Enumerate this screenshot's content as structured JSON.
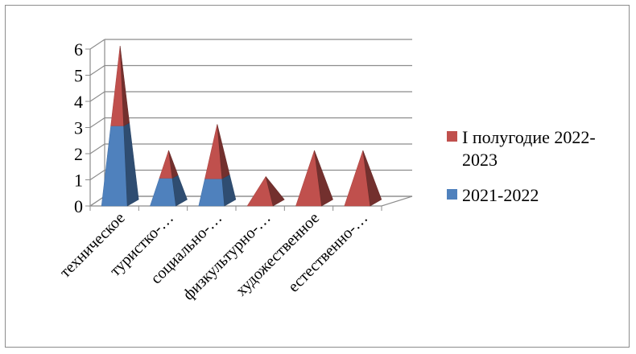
{
  "chart_data": {
    "type": "bar",
    "subtype": "3d-stacked-pyramid",
    "categories": [
      "техническое",
      "туристко-…",
      "социально-…",
      "физкультурно-…",
      "художественное",
      "естественно-…"
    ],
    "series": [
      {
        "name": "2021-2022",
        "color": "#4f81bd",
        "values": [
          3,
          1,
          1,
          0,
          0,
          0
        ]
      },
      {
        "name": "I полугодие 2022-2023",
        "color": "#c0504d",
        "values": [
          3,
          1,
          2,
          1,
          2,
          2
        ]
      }
    ],
    "ylim": [
      0,
      6
    ],
    "yticks": [
      "0",
      "1",
      "2",
      "3",
      "4",
      "5",
      "6"
    ],
    "grid": true,
    "legend_position": "right",
    "legend": [
      {
        "color": "#c0504d",
        "lines": [
          "I полугодие 2022-",
          "2023"
        ]
      },
      {
        "color": "#4f81bd",
        "lines": [
          "2021-2022"
        ]
      }
    ]
  }
}
